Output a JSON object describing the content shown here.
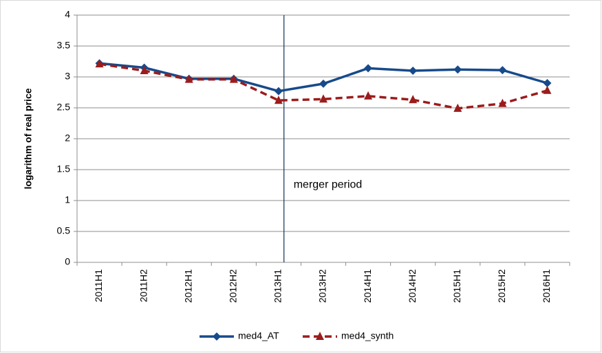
{
  "chart_data": {
    "type": "line",
    "y_label": "logarithm of real price",
    "categories": [
      "2011H1",
      "2011H2",
      "2012H1",
      "2012H2",
      "2013H1",
      "2013H2",
      "2014H1",
      "2014H2",
      "2015H1",
      "2015H2",
      "2016H1"
    ],
    "series": [
      {
        "name": "med4_AT",
        "color": "#174a8b",
        "marker": "diamond",
        "dashed": false,
        "values": [
          3.22,
          3.15,
          2.97,
          2.97,
          2.77,
          2.89,
          3.14,
          3.1,
          3.12,
          3.11,
          2.9
        ]
      },
      {
        "name": "med4_synth",
        "color": "#9b1c1c",
        "marker": "triangle",
        "dashed": true,
        "values": [
          3.21,
          3.1,
          2.96,
          2.96,
          2.62,
          2.64,
          2.69,
          2.63,
          2.49,
          2.57,
          2.78
        ]
      }
    ],
    "annotation": {
      "text": "merger period",
      "category": "2013H1"
    },
    "ylim": [
      0,
      4
    ],
    "yticks": [
      0,
      0.5,
      1,
      1.5,
      2,
      2.5,
      3,
      3.5,
      4
    ],
    "grid": true,
    "legend": "bottom"
  }
}
